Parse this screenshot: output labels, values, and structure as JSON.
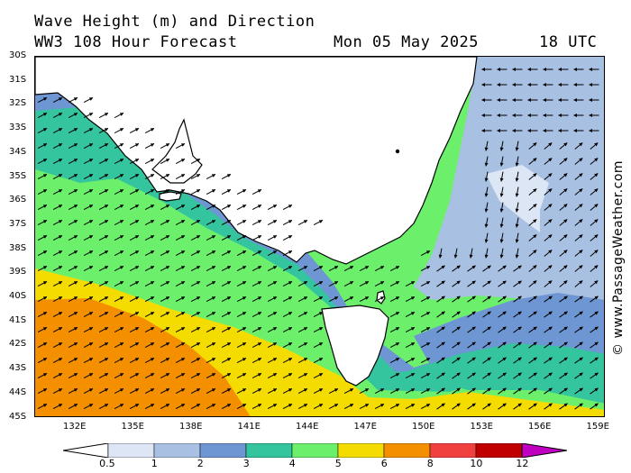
{
  "header": {
    "title": "Wave Height (m) and Direction",
    "model": "WW3 108 Hour Forecast",
    "date": "Mon 05 May 2025",
    "time": "18 UTC"
  },
  "latitudes": [
    "30S",
    "31S",
    "32S",
    "33S",
    "34S",
    "35S",
    "36S",
    "37S",
    "38S",
    "39S",
    "40S",
    "41S",
    "42S",
    "43S",
    "44S",
    "45S"
  ],
  "longitudes": [
    "132E",
    "135E",
    "138E",
    "141E",
    "144E",
    "147E",
    "150E",
    "153E",
    "156E",
    "159E"
  ],
  "credit": "© www.PassageWeather.com",
  "scale": {
    "labels": [
      "0.5",
      "1",
      "2",
      "3",
      "4",
      "5",
      "6",
      "8",
      "10",
      "12"
    ],
    "colors": [
      "#dce6f4",
      "#a8c0e2",
      "#6e96d2",
      "#34c49e",
      "#6cf06c",
      "#f4dc00",
      "#f49000",
      "#f04040",
      "#c00000",
      "#c000c0"
    ]
  },
  "colors": {
    "land": "#ffffff",
    "coast": "#000000",
    "arrow": "#000000"
  }
}
